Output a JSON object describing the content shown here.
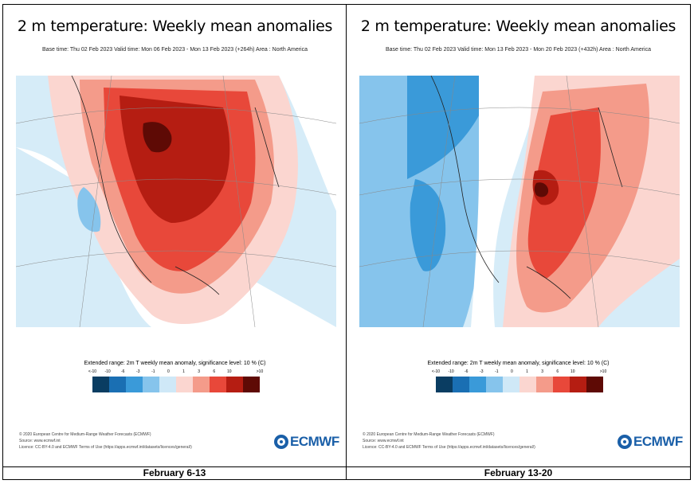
{
  "legend": {
    "title": "Extended range: 2m T weekly mean anomaly, significance level: 10 % (C)",
    "labels": [
      "<-10",
      "-10",
      "-6",
      "-3",
      "-1",
      "0",
      "1",
      "3",
      "6",
      "10",
      ">10"
    ],
    "colors": [
      "#0a3d62",
      "#1a6fb3",
      "#3a9ad9",
      "#86c4ec",
      "#cfe8f7",
      "#ffffff",
      "#fbd6d0",
      "#f49b8a",
      "#e8483a",
      "#b51d12",
      "#5e0a05"
    ]
  },
  "credits": [
    "© 2020 European Centre for Medium-Range Weather Forecasts (ECMWF)",
    "Source: www.ecmwf.int",
    "Licence: CC-BY-4.0 and ECMWF Terms of Use (https://apps.ecmwf.int/datasets/licences/general/)"
  ],
  "logo_text": "ECMWF",
  "panels": [
    {
      "title": "2 m temperature: Weekly mean anomalies",
      "subtitle": "Base time: Thu 02 Feb 2023 Valid time: Mon 06 Feb 2023 - Mon 13 Feb 2023 (+264h) Area : North America",
      "caption": "February 6-13"
    },
    {
      "title": "2 m temperature: Weekly mean anomalies",
      "subtitle": "Base time: Thu 02 Feb 2023 Valid time: Mon 13 Feb 2023 - Mon 20 Feb 2023 (+432h) Area : North America",
      "caption": "February 13-20"
    }
  ]
}
